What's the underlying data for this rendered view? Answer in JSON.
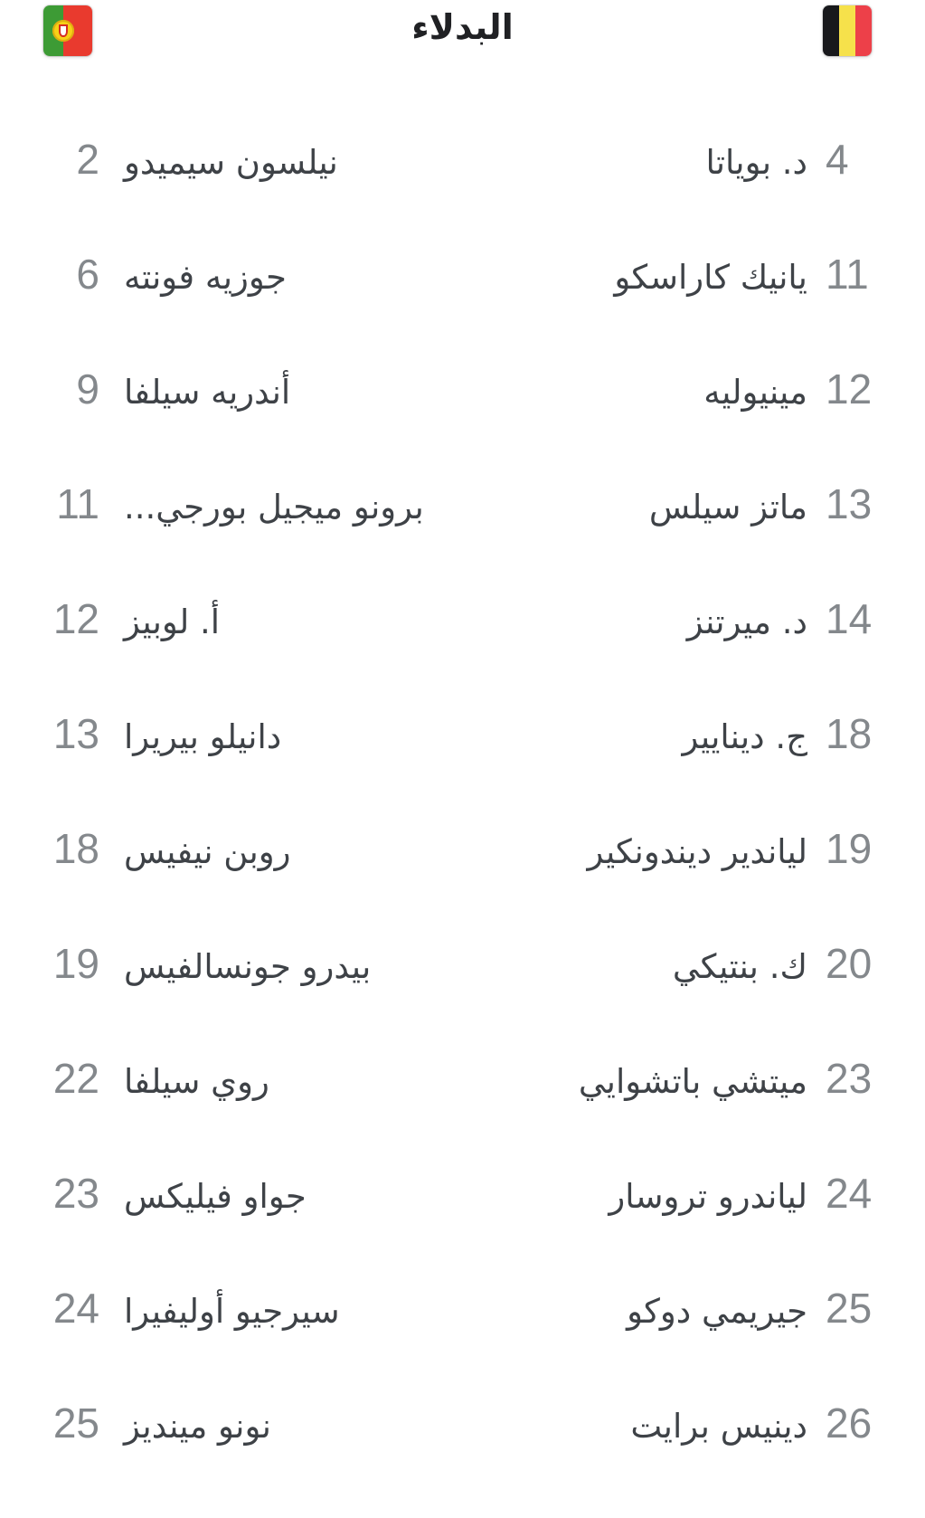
{
  "header": {
    "title": "البدلاء",
    "home_flag": "portugal-flag",
    "away_flag": "belgium-flag"
  },
  "colors": {
    "title": "#202124",
    "player_name": "#3e4247",
    "player_number": "#84888c",
    "portugal_green": "#3d9b35",
    "portugal_red": "#e93a2e",
    "portugal_emblem_yellow": "#f7d117",
    "belgium_black": "#17181b",
    "belgium_yellow": "#f6e14b",
    "belgium_red": "#ed4049"
  },
  "rows": [
    {
      "left": {
        "number": "2",
        "name": "نيلسون سيميدو"
      },
      "right": {
        "number": "4",
        "name": "د. بوياتا"
      }
    },
    {
      "left": {
        "number": "6",
        "name": "جوزيه فونته"
      },
      "right": {
        "number": "11",
        "name": "يانيك كاراسكو"
      }
    },
    {
      "left": {
        "number": "9",
        "name": "أندريه سيلفا"
      },
      "right": {
        "number": "12",
        "name": "مينيوليه"
      }
    },
    {
      "left": {
        "number": "11",
        "name": "برونو ميجيل بورجي..."
      },
      "right": {
        "number": "13",
        "name": "ماتز سيلس"
      }
    },
    {
      "left": {
        "number": "12",
        "name": "أ. لوبيز"
      },
      "right": {
        "number": "14",
        "name": "د. ميرتنز"
      }
    },
    {
      "left": {
        "number": "13",
        "name": "دانيلو بيريرا"
      },
      "right": {
        "number": "18",
        "name": "ج. دينايير"
      }
    },
    {
      "left": {
        "number": "18",
        "name": "روبن نيفيس"
      },
      "right": {
        "number": "19",
        "name": "لياندير ديندونكير"
      }
    },
    {
      "left": {
        "number": "19",
        "name": "بيدرو جونسالفيس"
      },
      "right": {
        "number": "20",
        "name": "ك. بنتيكي"
      }
    },
    {
      "left": {
        "number": "22",
        "name": "روي سيلفا"
      },
      "right": {
        "number": "23",
        "name": "ميتشي باتشوايي"
      }
    },
    {
      "left": {
        "number": "23",
        "name": "جواو فيليكس"
      },
      "right": {
        "number": "24",
        "name": "لياندرو تروسار"
      }
    },
    {
      "left": {
        "number": "24",
        "name": "سيرجيو أوليفيرا"
      },
      "right": {
        "number": "25",
        "name": "جيريمي دوكو"
      }
    },
    {
      "left": {
        "number": "25",
        "name": "نونو مينديز"
      },
      "right": {
        "number": "26",
        "name": "دينيس برايت"
      }
    }
  ]
}
